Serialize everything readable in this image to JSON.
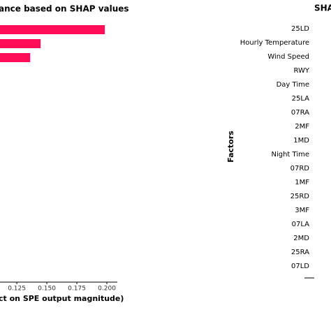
{
  "chart_data": [
    {
      "type": "bar",
      "orientation": "horizontal",
      "title": "ance based on SHAP values",
      "x_label": "ct on SPE output magnitude)",
      "categories": [
        null,
        null,
        null
      ],
      "values": [
        0.1983,
        0.1448,
        0.136
      ],
      "color": "#ff0d57",
      "xlim": [
        0.111,
        0.2087
      ],
      "xticks": [
        0.125,
        {
          "value": 0.15,
          "label": "0.150"
        },
        0.175,
        {
          "value": 0.2,
          "label": "0.200"
        }
      ]
    },
    {
      "type": "bar",
      "orientation": "horizontal",
      "title": "SHA",
      "y_label": "Factors",
      "categories": [
        "25LD",
        "Hourly Temperature",
        "Wind Speed",
        "RWY",
        "Day Time",
        "25LA",
        "07RA",
        "2MF",
        "1MD",
        "Night Time",
        "07RD",
        "1MF",
        "25RD",
        "3MF",
        "07LA",
        "2MD",
        "25RA",
        "07LD"
      ]
    }
  ]
}
